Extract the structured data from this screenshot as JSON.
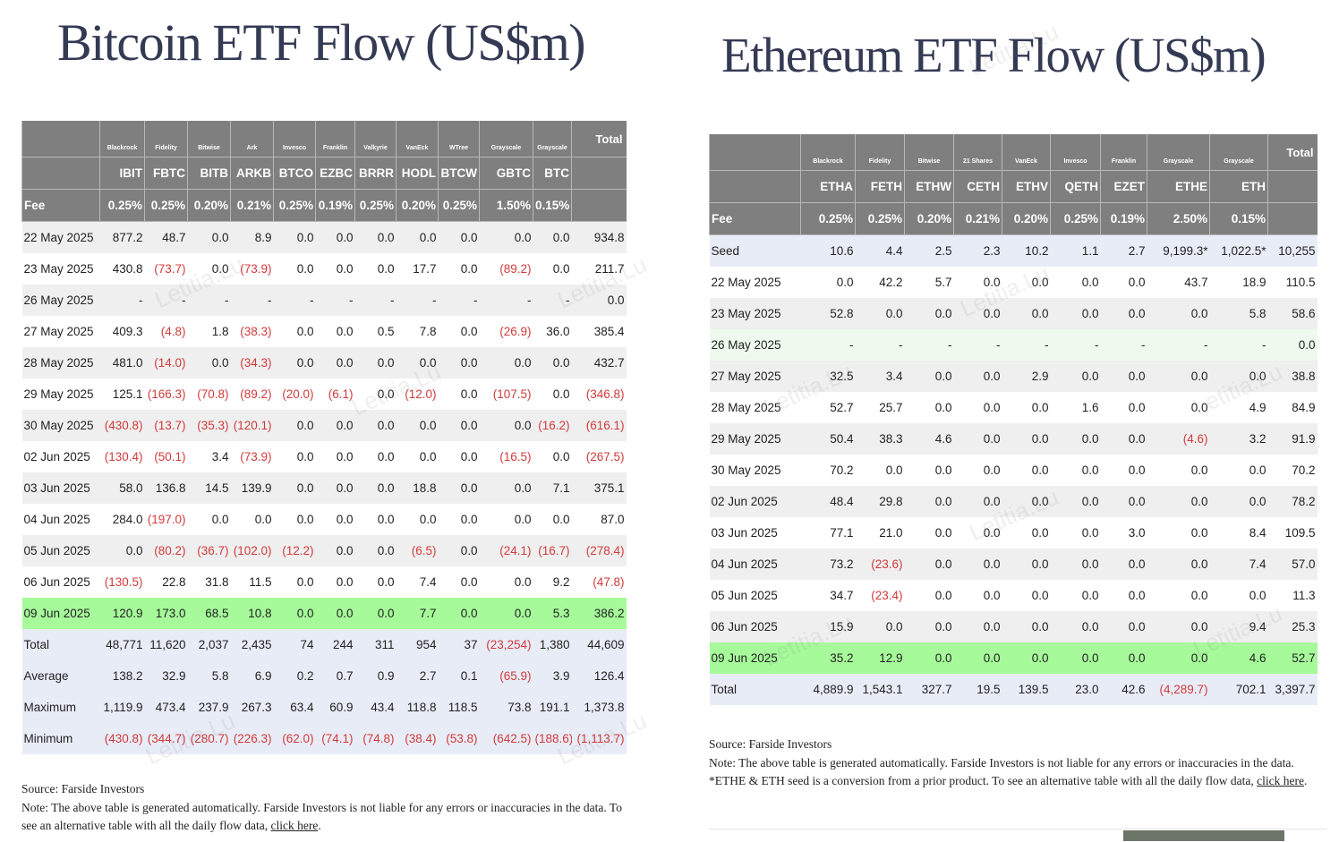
{
  "bitcoin": {
    "title": "Bitcoin ETF Flow (US$m)",
    "issuers": [
      "",
      "Blackrock",
      "Fidelity",
      "Bitwise",
      "Ark",
      "Invesco",
      "Franklin",
      "Valkyrie",
      "VanEck",
      "WTree",
      "Grayscale",
      "Grayscale",
      "Total"
    ],
    "tickers": [
      "",
      "IBIT",
      "FBTC",
      "BITB",
      "ARKB",
      "BTCO",
      "EZBC",
      "BRRR",
      "HODL",
      "BTCW",
      "GBTC",
      "BTC",
      ""
    ],
    "fees": [
      "Fee",
      "0.25%",
      "0.25%",
      "0.20%",
      "0.21%",
      "0.25%",
      "0.19%",
      "0.25%",
      "0.20%",
      "0.25%",
      "1.50%",
      "0.15%",
      ""
    ],
    "rows": [
      {
        "kind": "odd",
        "cells": [
          "22 May 2025",
          "877.2",
          "48.7",
          "0.0",
          "8.9",
          "0.0",
          "0.0",
          "0.0",
          "0.0",
          "0.0",
          "0.0",
          "0.0",
          "934.8"
        ]
      },
      {
        "kind": "even",
        "cells": [
          "23 May 2025",
          "430.8",
          "(73.7)",
          "0.0",
          "(73.9)",
          "0.0",
          "0.0",
          "0.0",
          "17.7",
          "0.0",
          "(89.2)",
          "0.0",
          "211.7"
        ]
      },
      {
        "kind": "odd",
        "cells": [
          "26 May 2025",
          "-",
          "-",
          "-",
          "-",
          "-",
          "-",
          "-",
          "-",
          "-",
          "-",
          "-",
          "0.0"
        ]
      },
      {
        "kind": "even",
        "cells": [
          "27 May 2025",
          "409.3",
          "(4.8)",
          "1.8",
          "(38.3)",
          "0.0",
          "0.0",
          "0.5",
          "7.8",
          "0.0",
          "(26.9)",
          "36.0",
          "385.4"
        ]
      },
      {
        "kind": "odd",
        "cells": [
          "28 May 2025",
          "481.0",
          "(14.0)",
          "0.0",
          "(34.3)",
          "0.0",
          "0.0",
          "0.0",
          "0.0",
          "0.0",
          "0.0",
          "0.0",
          "432.7"
        ]
      },
      {
        "kind": "even",
        "cells": [
          "29 May 2025",
          "125.1",
          "(166.3)",
          "(70.8)",
          "(89.2)",
          "(20.0)",
          "(6.1)",
          "0.0",
          "(12.0)",
          "0.0",
          "(107.5)",
          "0.0",
          "(346.8)"
        ]
      },
      {
        "kind": "odd",
        "cells": [
          "30 May 2025",
          "(430.8)",
          "(13.7)",
          "(35.3)",
          "(120.1)",
          "0.0",
          "0.0",
          "0.0",
          "0.0",
          "0.0",
          "0.0",
          "(16.2)",
          "(616.1)"
        ]
      },
      {
        "kind": "even",
        "cells": [
          "02 Jun 2025",
          "(130.4)",
          "(50.1)",
          "3.4",
          "(73.9)",
          "0.0",
          "0.0",
          "0.0",
          "0.0",
          "0.0",
          "(16.5)",
          "0.0",
          "(267.5)"
        ]
      },
      {
        "kind": "odd",
        "cells": [
          "03 Jun 2025",
          "58.0",
          "136.8",
          "14.5",
          "139.9",
          "0.0",
          "0.0",
          "0.0",
          "18.8",
          "0.0",
          "0.0",
          "7.1",
          "375.1"
        ]
      },
      {
        "kind": "even",
        "cells": [
          "04 Jun 2025",
          "284.0",
          "(197.0)",
          "0.0",
          "0.0",
          "0.0",
          "0.0",
          "0.0",
          "0.0",
          "0.0",
          "0.0",
          "0.0",
          "87.0"
        ]
      },
      {
        "kind": "odd",
        "cells": [
          "05 Jun 2025",
          "0.0",
          "(80.2)",
          "(36.7)",
          "(102.0)",
          "(12.2)",
          "0.0",
          "0.0",
          "(6.5)",
          "0.0",
          "(24.1)",
          "(16.7)",
          "(278.4)"
        ]
      },
      {
        "kind": "even",
        "cells": [
          "06 Jun 2025",
          "(130.5)",
          "22.8",
          "31.8",
          "11.5",
          "0.0",
          "0.0",
          "0.0",
          "7.4",
          "0.0",
          "0.0",
          "9.2",
          "(47.8)"
        ]
      },
      {
        "kind": "latest",
        "cells": [
          "09 Jun 2025",
          "120.9",
          "173.0",
          "68.5",
          "10.8",
          "0.0",
          "0.0",
          "0.0",
          "7.7",
          "0.0",
          "0.0",
          "5.3",
          "386.2"
        ]
      },
      {
        "kind": "summary",
        "cells": [
          "Total",
          "48,771",
          "11,620",
          "2,037",
          "2,435",
          "74",
          "244",
          "311",
          "954",
          "37",
          "(23,254)",
          "1,380",
          "44,609"
        ]
      },
      {
        "kind": "summary",
        "cells": [
          "Average",
          "138.2",
          "32.9",
          "5.8",
          "6.9",
          "0.2",
          "0.7",
          "0.9",
          "2.7",
          "0.1",
          "(65.9)",
          "3.9",
          "126.4"
        ]
      },
      {
        "kind": "summary",
        "cells": [
          "Maximum",
          "1,119.9",
          "473.4",
          "237.9",
          "267.3",
          "63.4",
          "60.9",
          "43.4",
          "118.8",
          "118.5",
          "73.8",
          "191.1",
          "1,373.8"
        ]
      },
      {
        "kind": "summary",
        "cells": [
          "Minimum",
          "(430.8)",
          "(344.7)",
          "(280.7)",
          "(226.3)",
          "(62.0)",
          "(74.1)",
          "(74.8)",
          "(38.4)",
          "(53.8)",
          "(642.5)",
          "(188.6)",
          "(1,113.7)"
        ]
      }
    ],
    "note": {
      "source": "Source: Farside Investors",
      "text": "Note: The above table is generated automatically. Farside Investors is not liable for any errors or inaccuracies in the data. To see an alternative table with all the daily flow data, ",
      "link": "click here",
      "end": "."
    }
  },
  "ethereum": {
    "title": "Ethereum ETF Flow (US$m)",
    "issuers": [
      "",
      "Blackrock",
      "Fidelity",
      "Bitwise",
      "21 Shares",
      "VanEck",
      "Invesco",
      "Franklin",
      "Grayscale",
      "Grayscale",
      "Total"
    ],
    "tickers": [
      "",
      "ETHA",
      "FETH",
      "ETHW",
      "CETH",
      "ETHV",
      "QETH",
      "EZET",
      "ETHE",
      "ETH",
      ""
    ],
    "fees": [
      "Fee",
      "0.25%",
      "0.25%",
      "0.20%",
      "0.21%",
      "0.20%",
      "0.25%",
      "0.19%",
      "2.50%",
      "0.15%",
      ""
    ],
    "rows": [
      {
        "kind": "seed",
        "cells": [
          "Seed",
          "10.6",
          "4.4",
          "2.5",
          "2.3",
          "10.2",
          "1.1",
          "2.7",
          "9,199.3*",
          "1,022.5*",
          "10,255"
        ]
      },
      {
        "kind": "even",
        "cells": [
          "22 May 2025",
          "0.0",
          "42.2",
          "5.7",
          "0.0",
          "0.0",
          "0.0",
          "0.0",
          "43.7",
          "18.9",
          "110.5"
        ]
      },
      {
        "kind": "odd",
        "cells": [
          "23 May 2025",
          "52.8",
          "0.0",
          "0.0",
          "0.0",
          "0.0",
          "0.0",
          "0.0",
          "0.0",
          "5.8",
          "58.6"
        ]
      },
      {
        "kind": "holiday",
        "cells": [
          "26 May 2025",
          "-",
          "-",
          "-",
          "-",
          "-",
          "-",
          "-",
          "-",
          "-",
          "0.0"
        ]
      },
      {
        "kind": "odd",
        "cells": [
          "27 May 2025",
          "32.5",
          "3.4",
          "0.0",
          "0.0",
          "2.9",
          "0.0",
          "0.0",
          "0.0",
          "0.0",
          "38.8"
        ]
      },
      {
        "kind": "even",
        "cells": [
          "28 May 2025",
          "52.7",
          "25.7",
          "0.0",
          "0.0",
          "0.0",
          "1.6",
          "0.0",
          "0.0",
          "4.9",
          "84.9"
        ]
      },
      {
        "kind": "odd",
        "cells": [
          "29 May 2025",
          "50.4",
          "38.3",
          "4.6",
          "0.0",
          "0.0",
          "0.0",
          "0.0",
          "(4.6)",
          "3.2",
          "91.9"
        ]
      },
      {
        "kind": "even",
        "cells": [
          "30 May 2025",
          "70.2",
          "0.0",
          "0.0",
          "0.0",
          "0.0",
          "0.0",
          "0.0",
          "0.0",
          "0.0",
          "70.2"
        ]
      },
      {
        "kind": "odd",
        "cells": [
          "02 Jun 2025",
          "48.4",
          "29.8",
          "0.0",
          "0.0",
          "0.0",
          "0.0",
          "0.0",
          "0.0",
          "0.0",
          "78.2"
        ]
      },
      {
        "kind": "even",
        "cells": [
          "03 Jun 2025",
          "77.1",
          "21.0",
          "0.0",
          "0.0",
          "0.0",
          "0.0",
          "3.0",
          "0.0",
          "8.4",
          "109.5"
        ]
      },
      {
        "kind": "odd",
        "cells": [
          "04 Jun 2025",
          "73.2",
          "(23.6)",
          "0.0",
          "0.0",
          "0.0",
          "0.0",
          "0.0",
          "0.0",
          "7.4",
          "57.0"
        ]
      },
      {
        "kind": "even",
        "cells": [
          "05 Jun 2025",
          "34.7",
          "(23.4)",
          "0.0",
          "0.0",
          "0.0",
          "0.0",
          "0.0",
          "0.0",
          "0.0",
          "11.3"
        ]
      },
      {
        "kind": "odd",
        "cells": [
          "06 Jun 2025",
          "15.9",
          "0.0",
          "0.0",
          "0.0",
          "0.0",
          "0.0",
          "0.0",
          "0.0",
          "9.4",
          "25.3"
        ]
      },
      {
        "kind": "latest",
        "cells": [
          "09 Jun 2025",
          "35.2",
          "12.9",
          "0.0",
          "0.0",
          "0.0",
          "0.0",
          "0.0",
          "0.0",
          "4.6",
          "52.7"
        ]
      },
      {
        "kind": "summary",
        "cells": [
          "Total",
          "4,889.9",
          "1,543.1",
          "327.7",
          "19.5",
          "139.5",
          "23.0",
          "42.6",
          "(4,289.7)",
          "702.1",
          "3,397.7"
        ]
      }
    ],
    "note": {
      "source": "Source: Farside Investors",
      "text": "Note: The above table is generated automatically. Farside Investors is not liable for any errors or inaccuracies in the data. *ETHE & ETH seed is a conversion from a prior product.  To see an alternative table with all the daily flow data, ",
      "link": "click here",
      "end": "."
    }
  },
  "watermark": "Letitia.Lu",
  "colors": {
    "header_gray": "#7f7f7f",
    "latest_green": "#a6fa9a",
    "negative_red": "#d23a3a",
    "summary_blue": "#e8ecf7",
    "title_navy": "#343a53"
  }
}
